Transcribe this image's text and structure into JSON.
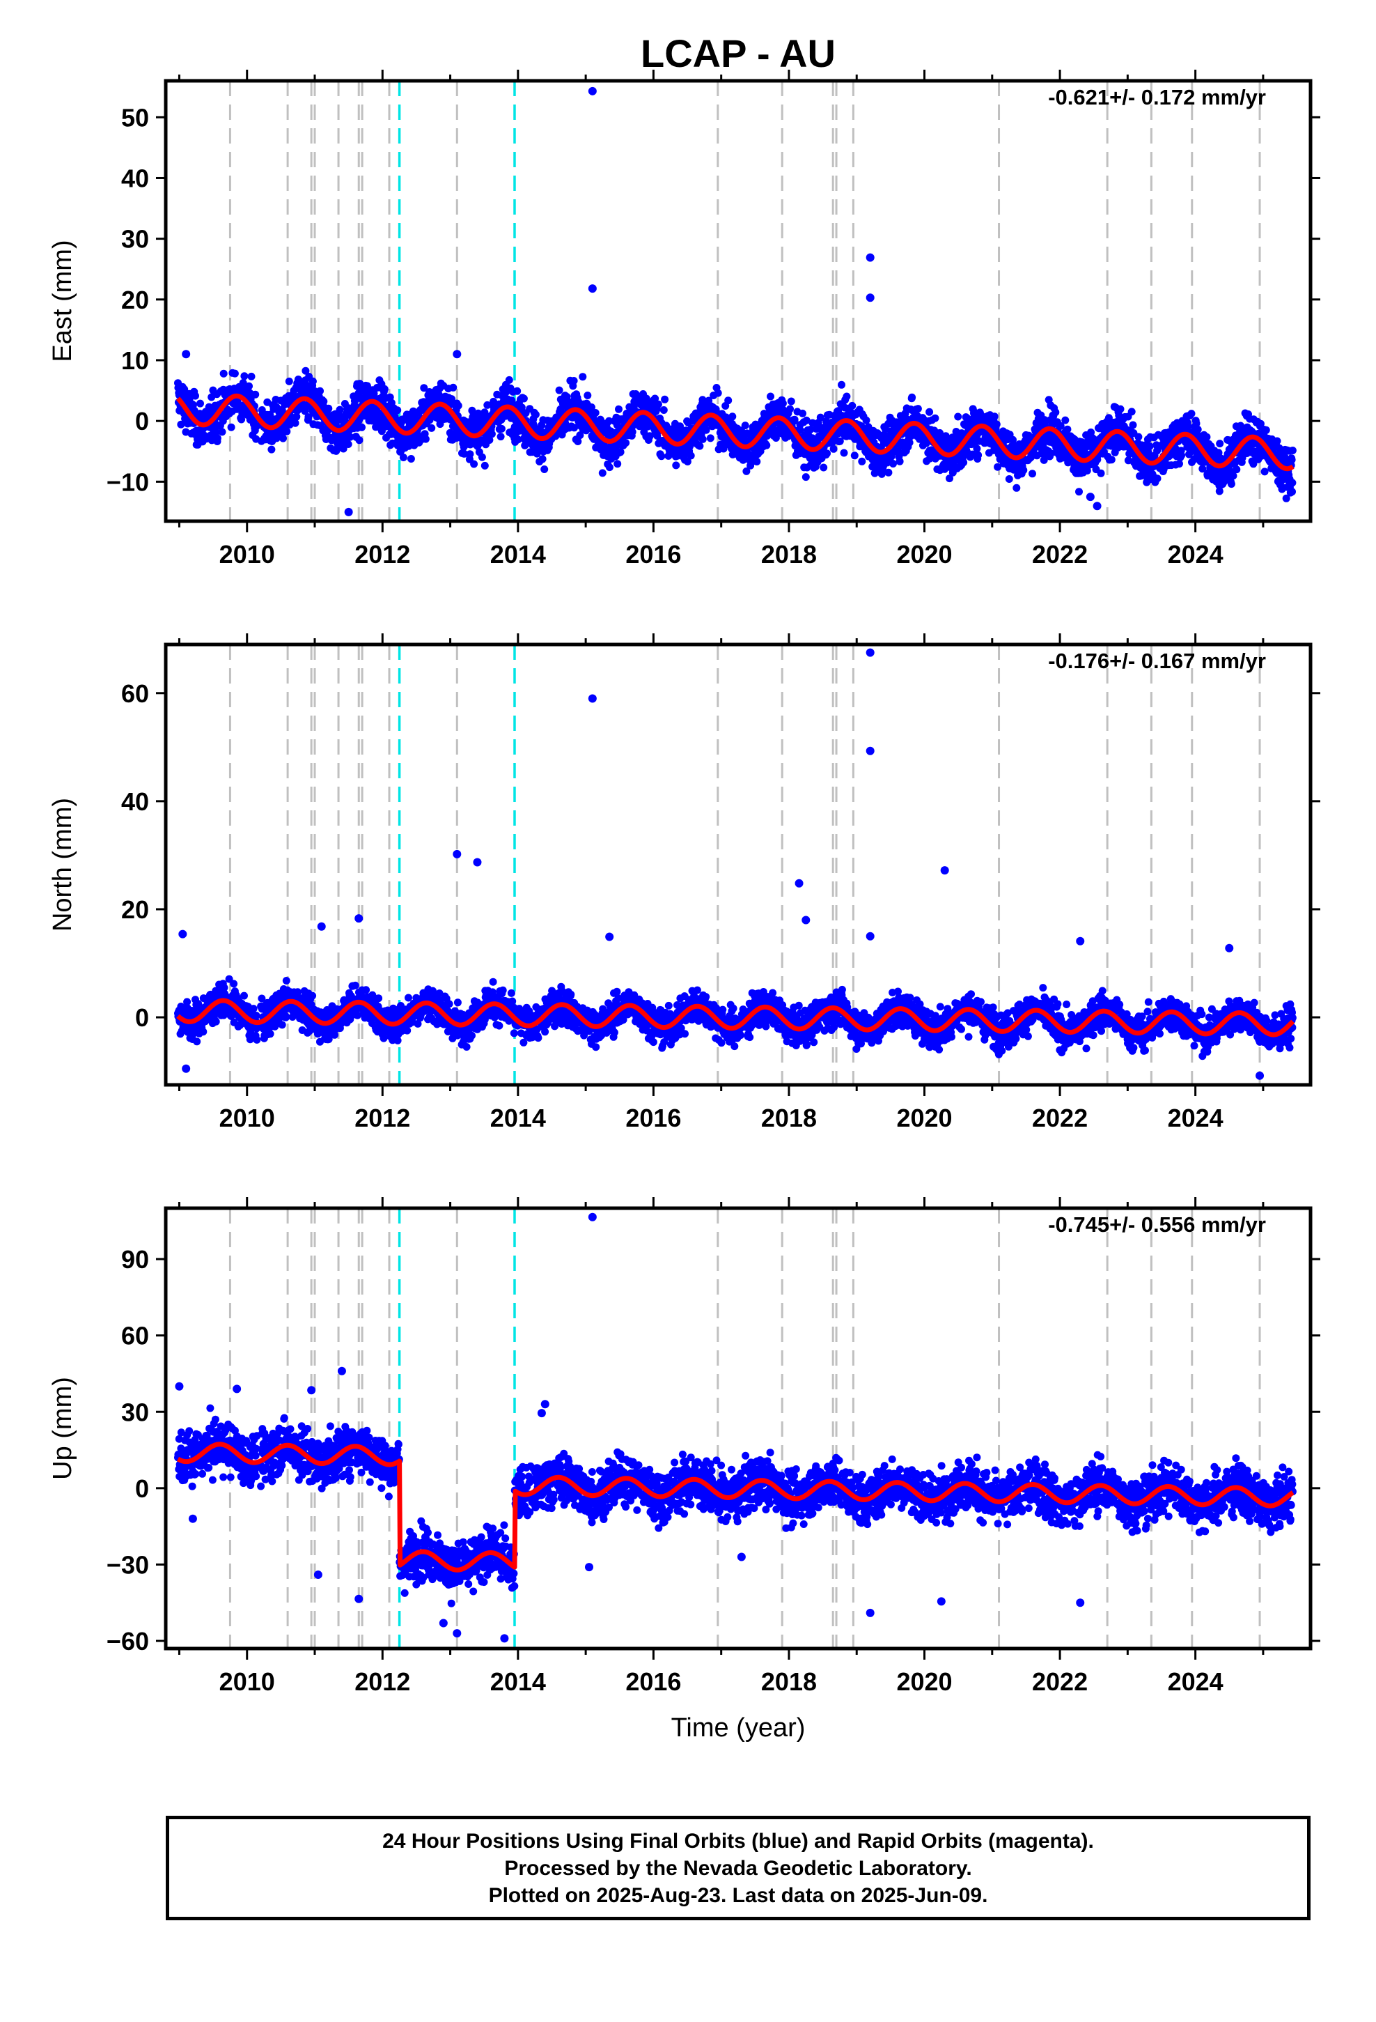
{
  "title": "LCAP - AU",
  "chart_data": [
    {
      "type": "scatter",
      "ylabel": "East (mm)",
      "xlabel": "",
      "xlim": [
        2008.8,
        2025.7
      ],
      "ylim": [
        -16.5,
        56
      ],
      "yticks": [
        -10,
        0,
        10,
        20,
        30,
        40,
        50
      ],
      "ytick_labels": [
        "−10",
        "0",
        "10",
        "20",
        "30",
        "40",
        "50"
      ],
      "xticks": [
        2010,
        2012,
        2014,
        2016,
        2018,
        2020,
        2022,
        2024
      ],
      "xtick_labels": [
        "2010",
        "2012",
        "2014",
        "2016",
        "2018",
        "2020",
        "2022",
        "2024"
      ],
      "rate": "-0.621+/- 0.172 mm/yr",
      "model": {
        "slope": -0.45,
        "offset": 2.0,
        "amp": 2.5,
        "phase_year": 2009.85,
        "steps": []
      },
      "scatter_sd": 1.9,
      "outliers": [
        [
          2015.1,
          54.3
        ],
        [
          2015.1,
          21.8
        ],
        [
          2019.2,
          26.9
        ],
        [
          2019.2,
          20.3
        ],
        [
          2011.5,
          -15.0
        ],
        [
          2013.1,
          11.0
        ],
        [
          2009.1,
          11.0
        ],
        [
          2022.55,
          -14.0
        ],
        [
          2022.45,
          -12.5
        ]
      ]
    },
    {
      "type": "scatter",
      "ylabel": "North (mm)",
      "xlabel": "",
      "xlim": [
        2008.8,
        2025.7
      ],
      "ylim": [
        -12.5,
        69
      ],
      "yticks": [
        0,
        20,
        40,
        60
      ],
      "ytick_labels": [
        "0",
        "20",
        "40",
        "60"
      ],
      "xticks": [
        2010,
        2012,
        2014,
        2016,
        2018,
        2020,
        2022,
        2024
      ],
      "xtick_labels": [
        "2010",
        "2012",
        "2014",
        "2016",
        "2018",
        "2020",
        "2022",
        "2024"
      ],
      "rate": "-0.176+/- 0.167 mm/yr",
      "model": {
        "slope": -0.15,
        "offset": 1.2,
        "amp": 2.0,
        "phase_year": 2009.65,
        "steps": []
      },
      "scatter_sd": 1.6,
      "outliers": [
        [
          2019.2,
          67.5
        ],
        [
          2015.1,
          59.0
        ],
        [
          2019.2,
          49.3
        ],
        [
          2013.1,
          30.2
        ],
        [
          2013.4,
          28.7
        ],
        [
          2020.3,
          27.2
        ],
        [
          2018.15,
          24.8
        ],
        [
          2018.25,
          18.0
        ],
        [
          2011.65,
          18.3
        ],
        [
          2011.1,
          16.8
        ],
        [
          2009.05,
          15.4
        ],
        [
          2015.35,
          14.9
        ],
        [
          2019.2,
          15.0
        ],
        [
          2022.3,
          14.1
        ],
        [
          2024.5,
          12.8
        ],
        [
          2024.95,
          -10.8
        ],
        [
          2009.1,
          -9.5
        ]
      ]
    },
    {
      "type": "scatter",
      "ylabel": "Up (mm)",
      "xlabel": "Time (year)",
      "xlim": [
        2008.8,
        2025.7
      ],
      "ylim": [
        -63,
        110
      ],
      "yticks": [
        -60,
        -30,
        0,
        30,
        60,
        90
      ],
      "ytick_labels": [
        "−60",
        "−30",
        "0",
        "30",
        "60",
        "90"
      ],
      "xticks": [
        2010,
        2012,
        2014,
        2016,
        2018,
        2020,
        2022,
        2024
      ],
      "xtick_labels": [
        "2010",
        "2012",
        "2014",
        "2016",
        "2018",
        "2020",
        "2022",
        "2024"
      ],
      "rate": "-0.745+/- 0.556 mm/yr",
      "model": {
        "slope": -0.4,
        "offset": 2.0,
        "amp": 3.5,
        "phase_year": 2009.6,
        "steps": [
          [
            2008.8,
            12.0
          ],
          [
            2012.25,
            -29.0
          ],
          [
            2013.95,
            1.0
          ]
        ]
      },
      "scatter_sd": 4.8,
      "outliers": [
        [
          2015.1,
          106.5
        ],
        [
          2011.4,
          46.0
        ],
        [
          2009.0,
          40.0
        ],
        [
          2009.85,
          39.0
        ],
        [
          2010.95,
          38.5
        ],
        [
          2014.4,
          33.0
        ],
        [
          2014.35,
          29.5
        ],
        [
          2011.65,
          -43.5
        ],
        [
          2020.25,
          -44.5
        ],
        [
          2022.3,
          -45.0
        ],
        [
          2019.2,
          -49.0
        ],
        [
          2013.8,
          -59.0
        ],
        [
          2013.1,
          -57.0
        ],
        [
          2012.9,
          -53.0
        ],
        [
          2011.05,
          -34.0
        ],
        [
          2009.2,
          -12.0
        ],
        [
          2015.05,
          -31.0
        ],
        [
          2017.3,
          -27.0
        ]
      ]
    }
  ],
  "vlines_gray": [
    2009.75,
    2010.6,
    2010.95,
    2011.0,
    2011.35,
    2011.65,
    2011.7,
    2012.1,
    2013.1,
    2016.95,
    2017.9,
    2018.65,
    2018.7,
    2018.95,
    2021.1,
    2022.7,
    2023.35,
    2023.95,
    2024.95
  ],
  "vlines_cyan": [
    2012.25,
    2013.95
  ],
  "colors": {
    "points": "#0000ff",
    "model": "#ff0000",
    "gray_line": "#c0c0c0",
    "cyan_line": "#00e5e5"
  },
  "footer": {
    "line1": "24 Hour Positions Using Final Orbits (blue) and Rapid Orbits (magenta).",
    "line2": "Processed by the Nevada Geodetic Laboratory.",
    "line3": "Plotted on 2025-Aug-23. Last data on 2025-Jun-09."
  }
}
